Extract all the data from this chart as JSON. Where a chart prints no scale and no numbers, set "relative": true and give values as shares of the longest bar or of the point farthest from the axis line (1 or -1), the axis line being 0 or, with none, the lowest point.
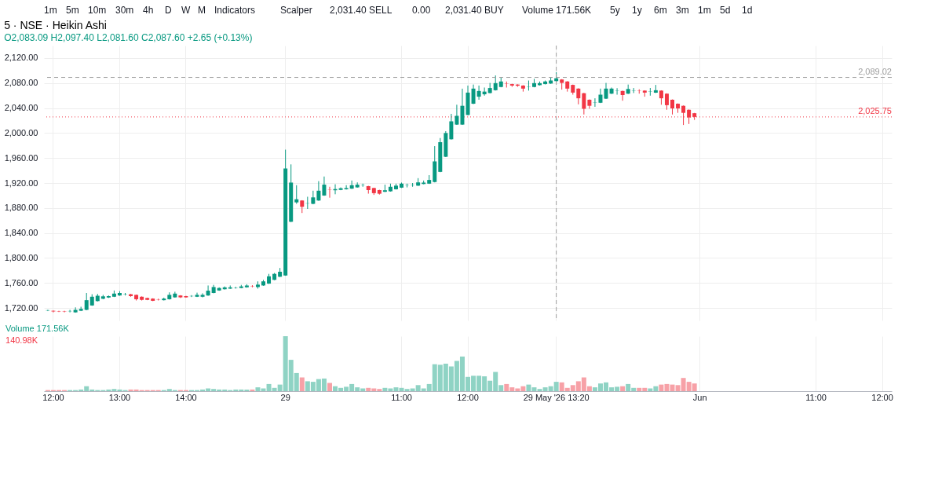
{
  "chart_data": [
    {
      "type": "candlestick",
      "title": "5 · NSE · Heikin Ashi",
      "subtitle": "O2,083.09 H2,097.40 L2,081.60 C2,087.60 +2.65 (+0.13%)",
      "annotations": [
        "1m",
        "5m",
        "10m",
        "30m",
        "4h",
        "D",
        "W",
        "M",
        "Indicators",
        "Scalper",
        "2,031.40 SELL",
        "0.00",
        "2,031.40 BUY",
        "Volume 171.56K",
        "5y",
        "1y",
        "6m",
        "3m",
        "1m",
        "5d",
        "1d"
      ],
      "categories": [
        null,
        "12:00",
        null,
        null,
        null,
        null,
        null,
        null,
        null,
        null,
        null,
        null,
        null,
        "13:00",
        null,
        null,
        null,
        null,
        null,
        null,
        null,
        null,
        null,
        null,
        null,
        "14:00",
        null,
        null,
        null,
        null,
        null,
        null,
        null,
        null,
        null,
        null,
        null,
        null,
        null,
        null,
        null,
        null,
        null,
        "29",
        null,
        null,
        null,
        null,
        null,
        null,
        null,
        null,
        null,
        null,
        null,
        null,
        null,
        null,
        null,
        null,
        null,
        null,
        null,
        null,
        "11:00",
        null,
        null,
        null,
        null,
        null,
        null,
        null,
        null,
        null,
        null,
        null,
        "12:00",
        null,
        null,
        null,
        null,
        null,
        null,
        null,
        null,
        null,
        null,
        null,
        null,
        null,
        null,
        null,
        "29 May '26 13:20",
        null,
        null,
        null,
        null,
        null,
        null,
        null,
        null,
        null,
        null,
        null,
        null,
        null,
        null,
        null,
        null,
        null,
        null,
        null,
        null,
        null,
        null,
        null,
        null,
        null,
        "Jun",
        null,
        null,
        null,
        null,
        null,
        null,
        null,
        null,
        null,
        null,
        null,
        null,
        null,
        null,
        null,
        null,
        null,
        null,
        null,
        null,
        "11:00",
        null,
        null,
        null,
        null,
        null,
        null,
        null,
        null,
        null,
        null,
        null,
        "12:00",
        null
      ],
      "ohlc": [
        [
          1716,
          1717,
          1715,
          1716.5
        ],
        [
          1715.5,
          1716,
          1713,
          1714.5
        ],
        [
          1715,
          1715.5,
          1713.5,
          1714.5
        ],
        [
          1714.5,
          1715.5,
          1713,
          1714
        ],
        [
          1714.8,
          1717,
          1713,
          1715.2
        ],
        [
          1713,
          1721,
          1712.5,
          1717
        ],
        [
          1715.6,
          1722,
          1715,
          1718.5
        ],
        [
          1717,
          1744,
          1716.5,
          1732.5
        ],
        [
          1724,
          1742,
          1723.5,
          1738
        ],
        [
          1731,
          1742.5,
          1730.5,
          1739.6
        ],
        [
          1734.8,
          1741,
          1734,
          1738.6
        ],
        [
          1736.7,
          1740,
          1736,
          1739
        ],
        [
          1738,
          1748,
          1737.5,
          1743
        ],
        [
          1740,
          1747,
          1739.5,
          1744
        ],
        [
          1741.8,
          1744,
          1740,
          1742.2
        ],
        [
          1742,
          1742.5,
          1738,
          1739
        ],
        [
          1741,
          1741.5,
          1732,
          1734
        ],
        [
          1738,
          1738.5,
          1732,
          1733
        ],
        [
          1736,
          1736.5,
          1732.5,
          1733
        ],
        [
          1735,
          1735.5,
          1731,
          1731.5
        ],
        [
          1733.7,
          1735,
          1732,
          1733.3
        ],
        [
          1732.5,
          1736.5,
          1732,
          1735
        ],
        [
          1734,
          1745,
          1733.5,
          1741
        ],
        [
          1737,
          1746,
          1736.5,
          1743
        ],
        [
          1740,
          1740.5,
          1736,
          1737
        ],
        [
          1739,
          1739.5,
          1736.5,
          1737
        ],
        [
          1738.8,
          1740.5,
          1737.5,
          1739.2
        ],
        [
          1738,
          1744.5,
          1737.5,
          1741
        ],
        [
          1738,
          1743.5,
          1737,
          1741
        ],
        [
          1740,
          1756,
          1739.5,
          1747.7
        ],
        [
          1744,
          1757,
          1743.5,
          1753.5
        ],
        [
          1748,
          1753,
          1747.5,
          1752
        ],
        [
          1750,
          1754.5,
          1749.5,
          1753
        ],
        [
          1751,
          1756,
          1750.5,
          1753
        ],
        [
          1752.3,
          1754,
          1751,
          1752.7
        ],
        [
          1752,
          1757,
          1751.5,
          1754.5
        ],
        [
          1753,
          1758,
          1752.5,
          1756
        ],
        [
          1754.7,
          1756.5,
          1753,
          1754.3
        ],
        [
          1753.5,
          1762.6,
          1751,
          1757.4
        ],
        [
          1756,
          1765,
          1755.5,
          1762.6
        ],
        [
          1759,
          1774.6,
          1758.5,
          1770.7
        ],
        [
          1765,
          1776,
          1764.5,
          1774.6
        ],
        [
          1770,
          1784,
          1769.5,
          1778
        ],
        [
          1772,
          1973.4,
          1771.5,
          1943.3
        ],
        [
          1858,
          1949.8,
          1857.5,
          1920.7
        ],
        [
          1889,
          1916.5,
          1886.7,
          1894
        ],
        [
          1892,
          1892.5,
          1872,
          1882
        ],
        [
          1887.2,
          1898,
          1878.5,
          1887.6
        ],
        [
          1886.7,
          1907.7,
          1886,
          1897
        ],
        [
          1892,
          1923,
          1891.5,
          1907.7
        ],
        [
          1900,
          1930.4,
          1899.5,
          1917.4
        ],
        [
          1909.2,
          1914,
          1896.5,
          1908.8
        ],
        [
          1908.4,
          1918,
          1902,
          1910.3
        ],
        [
          1909,
          1913,
          1908.5,
          1911.6
        ],
        [
          1910,
          1916.5,
          1909.5,
          1911.9
        ],
        [
          1911,
          1924,
          1910.5,
          1916.5
        ],
        [
          1913,
          1921,
          1912.5,
          1917.4
        ],
        [
          1916.3,
          1919,
          1914,
          1916.7
        ],
        [
          1915,
          1915.5,
          1903,
          1908.7
        ],
        [
          1912,
          1912.5,
          1901,
          1903.8
        ],
        [
          1908.7,
          1909.2,
          1901.5,
          1902.9
        ],
        [
          1906,
          1917.4,
          1905.5,
          1908.4
        ],
        [
          1906.7,
          1919,
          1906.2,
          1914
        ],
        [
          1910,
          1919,
          1909.5,
          1915.8
        ],
        [
          1912.6,
          1920.7,
          1912,
          1919
        ],
        [
          1916.3,
          1919,
          1913,
          1916.7
        ],
        [
          1916.8,
          1920,
          1914,
          1917.2
        ],
        [
          1915.8,
          1927.8,
          1915.3,
          1921
        ],
        [
          1918.4,
          1924,
          1918,
          1920.7
        ],
        [
          1919,
          1932.6,
          1918.5,
          1924.9
        ],
        [
          1921.6,
          1979,
          1921,
          1954.6
        ],
        [
          1937.8,
          1992,
          1937.3,
          1985.4
        ],
        [
          1962,
          2003,
          1961.5,
          2000
        ],
        [
          1990,
          2030.7,
          1989.5,
          2018.7
        ],
        [
          2013.5,
          2045.3,
          2013,
          2027.5
        ],
        [
          2013.5,
          2071,
          2013,
          2043.6
        ],
        [
          2029,
          2076,
          2028.5,
          2064.7
        ],
        [
          2046.9,
          2077.6,
          2046.4,
          2071.1
        ],
        [
          2058.2,
          2076,
          2053.3,
          2067.3
        ],
        [
          2062,
          2072.8,
          2059.8,
          2066.3
        ],
        [
          2064,
          2080.2,
          2063.5,
          2072
        ],
        [
          2068.5,
          2092.2,
          2068,
          2079.9
        ],
        [
          2073.7,
          2089,
          2073.2,
          2082.5
        ],
        [
          2079.4,
          2082.5,
          2072.8,
          2079
        ],
        [
          2078.3,
          2078.8,
          2074,
          2076
        ],
        [
          2077.6,
          2078,
          2074,
          2075.7
        ],
        [
          2076,
          2076.5,
          2066.3,
          2071.1
        ],
        [
          2073.5,
          2084,
          2067.9,
          2073.9
        ],
        [
          2073.7,
          2086.7,
          2073.2,
          2079.9
        ],
        [
          2076.6,
          2082.5,
          2076.1,
          2079.9
        ],
        [
          2078.3,
          2084,
          2077.8,
          2082.5
        ],
        [
          2079.2,
          2089,
          2078.7,
          2084.1
        ],
        [
          2083.09,
          2097.4,
          2081.6,
          2087.6
        ],
        [
          2085.7,
          2086.2,
          2069.5,
          2080.2
        ],
        [
          2082.5,
          2083,
          2066.3,
          2071.1
        ],
        [
          2077,
          2077.5,
          2061.4,
          2064.7
        ],
        [
          2071.1,
          2071.6,
          2045.9,
          2055.6
        ],
        [
          2063.7,
          2064.2,
          2029.7,
          2038.8
        ],
        [
          2053.3,
          2053.8,
          2038.8,
          2043.6
        ],
        [
          2048.3,
          2055.6,
          2042,
          2048.7
        ],
        [
          2048.5,
          2071.1,
          2048,
          2061.4
        ],
        [
          2055,
          2080.2,
          2054.5,
          2071.1
        ],
        [
          2063,
          2072.8,
          2062.5,
          2071.1
        ],
        [
          2067.1,
          2071.8,
          2061.4,
          2067.5
        ],
        [
          2067.3,
          2067.8,
          2051.7,
          2060.8
        ],
        [
          2063,
          2077.6,
          2062.5,
          2070.5
        ],
        [
          2067.7,
          2072,
          2064,
          2068.1
        ],
        [
          2067.5,
          2070,
          2063,
          2067.1
        ],
        [
          2067.9,
          2068.4,
          2058.2,
          2064.7
        ],
        [
          2066.1,
          2072.1,
          2059.8,
          2066.5
        ],
        [
          2064.6,
          2077,
          2064.1,
          2068.5
        ],
        [
          2067.9,
          2068.4,
          2045.3,
          2055.6
        ],
        [
          2063,
          2063.5,
          2037.2,
          2044.6
        ],
        [
          2053.3,
          2053.8,
          2029.7,
          2039.4
        ],
        [
          2046.9,
          2047.4,
          2032.3,
          2039.4
        ],
        [
          2043.6,
          2044.1,
          2012.9,
          2032.3
        ],
        [
          2037.2,
          2037.7,
          2014.5,
          2024.9
        ],
        [
          2031.7,
          2032.2,
          2021,
          2025.75
        ],
        null,
        null,
        null,
        null,
        null,
        null,
        null,
        null,
        null,
        null,
        null,
        null,
        null,
        null,
        null,
        null,
        null,
        null,
        null,
        null,
        null,
        null,
        null,
        null,
        null,
        null,
        null,
        null,
        null,
        null,
        null,
        null,
        null,
        null,
        null
      ],
      "colors": [
        "#089981",
        "#f23645",
        "#f23645",
        "#f23645",
        "#089981",
        "#089981",
        "#089981",
        "#089981",
        "#089981",
        "#089981",
        "#089981",
        "#089981",
        "#089981",
        "#089981",
        "#089981",
        "#f23645",
        "#f23645",
        "#f23645",
        "#f23645",
        "#f23645",
        "#f23645",
        "#089981",
        "#089981",
        "#089981",
        "#f23645",
        "#f23645",
        "#089981",
        "#089981",
        "#089981",
        "#089981",
        "#089981",
        "#089981",
        "#089981",
        "#089981",
        "#089981",
        "#089981",
        "#089981",
        "#f23645",
        "#089981",
        "#089981",
        "#089981",
        "#089981",
        "#089981",
        "#089981",
        "#089981",
        "#089981",
        "#f23645",
        "#089981",
        "#089981",
        "#089981",
        "#089981",
        "#f23645",
        "#089981",
        "#089981",
        "#089981",
        "#089981",
        "#089981",
        "#089981",
        "#f23645",
        "#f23645",
        "#f23645",
        "#089981",
        "#089981",
        "#089981",
        "#089981",
        "#089981",
        "#089981",
        "#089981",
        "#089981",
        "#089981",
        "#089981",
        "#089981",
        "#089981",
        "#089981",
        "#089981",
        "#089981",
        "#089981",
        "#089981",
        "#089981",
        "#089981",
        "#089981",
        "#089981",
        "#089981",
        "#f23645",
        "#f23645",
        "#f23645",
        "#f23645",
        "#089981",
        "#089981",
        "#089981",
        "#089981",
        "#089981",
        "#089981",
        "#f23645",
        "#f23645",
        "#f23645",
        "#f23645",
        "#f23645",
        "#f23645",
        "#089981",
        "#089981",
        "#089981",
        "#089981",
        "#089981",
        "#f23645",
        "#089981",
        "#089981",
        "#f23645",
        "#f23645",
        "#089981",
        "#089981",
        "#f23645",
        "#f23645",
        "#f23645",
        "#f23645",
        "#f23645",
        "#f23645",
        "#f23645",
        null,
        null,
        null,
        null,
        null,
        null,
        null,
        null,
        null,
        null,
        null,
        null,
        null,
        null,
        null,
        null,
        null,
        null,
        null,
        null,
        null,
        null,
        null,
        null,
        null,
        null,
        null,
        null,
        null,
        null,
        null,
        null,
        null,
        null,
        null
      ],
      "ylim": [
        1700,
        2140
      ],
      "yticks": [
        {
          "value": 1720,
          "label": "1,720.00"
        },
        {
          "value": 1760,
          "label": "1,760.00"
        },
        {
          "value": 1800,
          "label": "1,800.00"
        },
        {
          "value": 1840,
          "label": "1,840.00"
        },
        {
          "value": 1880,
          "label": "1,880.00"
        },
        {
          "value": 1920,
          "label": "1,920.00"
        },
        {
          "value": 1960,
          "label": "1,960.00"
        },
        {
          "value": 2000,
          "label": "2,000.00"
        },
        {
          "value": 2040,
          "label": "2,040.00"
        },
        {
          "value": 2080,
          "label": "2,080.00"
        },
        {
          "value": 2120,
          "label": "2,120.00"
        }
      ],
      "tick_labels": "y",
      "grid": true,
      "ref_lines": [
        {
          "axis": "y",
          "value": 2089.02,
          "label": "2,089.02",
          "color": "#9e9e9e",
          "line_style": "dashed"
        },
        {
          "axis": "y",
          "value": 2025.75,
          "label": "2,025.75",
          "color": "#f23645",
          "line_style": "dotted"
        },
        {
          "axis": "x",
          "value": "29 May '26 13:20",
          "color": "#9e9e9e",
          "line_style": "dashed"
        }
      ]
    },
    {
      "type": "bar",
      "title": "Volume 171.56K",
      "relative": true,
      "annotations": [
        "140.98K"
      ],
      "categories": [
        null,
        "12:00",
        null,
        null,
        null,
        null,
        null,
        null,
        null,
        null,
        null,
        null,
        null,
        "13:00",
        null,
        null,
        null,
        null,
        null,
        null,
        null,
        null,
        null,
        null,
        null,
        "14:00",
        null,
        null,
        null,
        null,
        null,
        null,
        null,
        null,
        null,
        null,
        null,
        null,
        null,
        null,
        null,
        null,
        null,
        "29",
        null,
        null,
        null,
        null,
        null,
        null,
        null,
        null,
        null,
        null,
        null,
        null,
        null,
        null,
        null,
        null,
        null,
        null,
        null,
        null,
        "11:00",
        null,
        null,
        null,
        null,
        null,
        null,
        null,
        null,
        null,
        null,
        null,
        "12:00",
        null,
        null,
        null,
        null,
        null,
        null,
        null,
        null,
        null,
        null,
        null,
        null,
        null,
        null,
        null,
        "29 May '26 13:20",
        null,
        null,
        null,
        null,
        null,
        null,
        null,
        null,
        null,
        null,
        null,
        null,
        null,
        null,
        null,
        null,
        null,
        null,
        null,
        null,
        null,
        null,
        null,
        null,
        null,
        "Jun",
        null,
        null,
        null,
        null,
        null,
        null,
        null,
        null,
        null,
        null,
        null,
        null,
        null,
        null,
        null,
        null,
        null,
        null,
        null,
        null,
        "11:00",
        null,
        null,
        null,
        null,
        null,
        null,
        null,
        null,
        null,
        null,
        null,
        "12:00",
        null
      ],
      "values": [
        0.02,
        0.02,
        0.02,
        0.02,
        0.02,
        0.02,
        0.03,
        0.09,
        0.03,
        0.02,
        0.02,
        0.03,
        0.04,
        0.03,
        0.02,
        0.03,
        0.03,
        0.02,
        0.02,
        0.02,
        0.02,
        0.02,
        0.04,
        0.02,
        0.02,
        0.02,
        0.02,
        0.02,
        0.03,
        0.05,
        0.04,
        0.03,
        0.03,
        0.02,
        0.03,
        0.03,
        0.03,
        0.03,
        0.07,
        0.05,
        0.13,
        0.06,
        0.12,
        1,
        0.57,
        0.33,
        0.25,
        0.18,
        0.17,
        0.22,
        0.23,
        0.15,
        0.09,
        0.06,
        0.08,
        0.13,
        0.07,
        0.05,
        0.06,
        0.05,
        0.04,
        0.06,
        0.05,
        0.07,
        0.06,
        0.04,
        0.05,
        0.11,
        0.05,
        0.13,
        0.49,
        0.48,
        0.5,
        0.45,
        0.55,
        0.63,
        0.26,
        0.28,
        0.28,
        0.27,
        0.19,
        0.35,
        0.11,
        0.13,
        0.07,
        0.05,
        0.09,
        0.12,
        0.07,
        0.04,
        0.07,
        0.09,
        0.17,
        0.16,
        0.06,
        0.11,
        0.18,
        0.25,
        0.09,
        0.07,
        0.14,
        0.16,
        0.07,
        0.08,
        0.09,
        0.13,
        0.06,
        0.06,
        0.06,
        0.05,
        0.09,
        0.12,
        0.13,
        0.12,
        0.11,
        0.24,
        0.17,
        0.14,
        null,
        null,
        null,
        null,
        null,
        null,
        null,
        null,
        null,
        null,
        null,
        null,
        null,
        null,
        null,
        null,
        null,
        null,
        null,
        null,
        null,
        null,
        null,
        null,
        null,
        null,
        null,
        null,
        null,
        null,
        null,
        null,
        null,
        null,
        null
      ],
      "colors": [
        "#f7a1a7",
        "#f7a1a7",
        "#f7a1a7",
        "#f7a1a7",
        "#8fd3c4",
        "#8fd3c4",
        "#8fd3c4",
        "#8fd3c4",
        "#8fd3c4",
        "#8fd3c4",
        "#8fd3c4",
        "#8fd3c4",
        "#8fd3c4",
        "#8fd3c4",
        "#8fd3c4",
        "#f7a1a7",
        "#f7a1a7",
        "#f7a1a7",
        "#f7a1a7",
        "#f7a1a7",
        "#f7a1a7",
        "#8fd3c4",
        "#8fd3c4",
        "#8fd3c4",
        "#f7a1a7",
        "#f7a1a7",
        "#8fd3c4",
        "#8fd3c4",
        "#8fd3c4",
        "#8fd3c4",
        "#8fd3c4",
        "#8fd3c4",
        "#8fd3c4",
        "#8fd3c4",
        "#8fd3c4",
        "#8fd3c4",
        "#8fd3c4",
        "#f7a1a7",
        "#8fd3c4",
        "#8fd3c4",
        "#8fd3c4",
        "#8fd3c4",
        "#8fd3c4",
        "#8fd3c4",
        "#8fd3c4",
        "#8fd3c4",
        "#f7a1a7",
        "#8fd3c4",
        "#8fd3c4",
        "#8fd3c4",
        "#8fd3c4",
        "#f7a1a7",
        "#8fd3c4",
        "#8fd3c4",
        "#8fd3c4",
        "#8fd3c4",
        "#8fd3c4",
        "#8fd3c4",
        "#f7a1a7",
        "#f7a1a7",
        "#f7a1a7",
        "#8fd3c4",
        "#8fd3c4",
        "#8fd3c4",
        "#8fd3c4",
        "#8fd3c4",
        "#8fd3c4",
        "#8fd3c4",
        "#8fd3c4",
        "#8fd3c4",
        "#8fd3c4",
        "#8fd3c4",
        "#8fd3c4",
        "#8fd3c4",
        "#8fd3c4",
        "#8fd3c4",
        "#8fd3c4",
        "#8fd3c4",
        "#8fd3c4",
        "#8fd3c4",
        "#8fd3c4",
        "#8fd3c4",
        "#8fd3c4",
        "#f7a1a7",
        "#f7a1a7",
        "#f7a1a7",
        "#f7a1a7",
        "#8fd3c4",
        "#8fd3c4",
        "#8fd3c4",
        "#8fd3c4",
        "#8fd3c4",
        "#8fd3c4",
        "#f7a1a7",
        "#f7a1a7",
        "#f7a1a7",
        "#f7a1a7",
        "#f7a1a7",
        "#f7a1a7",
        "#8fd3c4",
        "#8fd3c4",
        "#8fd3c4",
        "#8fd3c4",
        "#8fd3c4",
        "#f7a1a7",
        "#8fd3c4",
        "#8fd3c4",
        "#f7a1a7",
        "#f7a1a7",
        "#8fd3c4",
        "#8fd3c4",
        "#f7a1a7",
        "#f7a1a7",
        "#f7a1a7",
        "#f7a1a7",
        "#f7a1a7",
        "#f7a1a7",
        "#f7a1a7",
        null,
        null,
        null,
        null,
        null,
        null,
        null,
        null,
        null,
        null,
        null,
        null,
        null,
        null,
        null,
        null,
        null,
        null,
        null,
        null,
        null,
        null,
        null,
        null,
        null,
        null,
        null,
        null,
        null,
        null,
        null,
        null,
        null,
        null,
        null
      ],
      "tick_labels": "x",
      "grid": true
    }
  ]
}
